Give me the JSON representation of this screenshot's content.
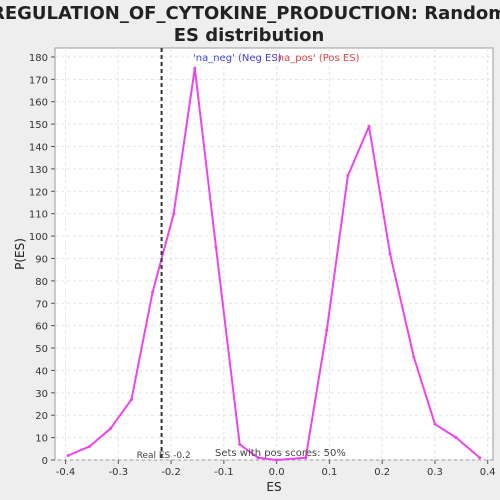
{
  "chart_data": {
    "type": "line",
    "title": "REGULATION_OF_CYTOKINE_PRODUCTION: Random\nES distribution",
    "xlabel": "ES",
    "ylabel": "P(ES)",
    "xlim": [
      -0.42,
      0.41
    ],
    "ylim": [
      0,
      184
    ],
    "x_ticks": [
      -0.4,
      -0.3,
      -0.2,
      -0.1,
      0.0,
      0.1,
      0.2,
      0.3,
      0.4
    ],
    "x_tick_labels": [
      "-0.4",
      "-0.3",
      "-0.2",
      "-0.1",
      "0.0",
      "0.1",
      "0.2",
      "0.3",
      "0.4"
    ],
    "y_ticks": [
      0,
      10,
      20,
      30,
      40,
      50,
      60,
      70,
      80,
      90,
      100,
      110,
      120,
      130,
      140,
      150,
      160,
      170,
      180
    ],
    "grid": true,
    "legend": [
      {
        "label": "'na_neg' (Neg ES)",
        "color": "#4444dd"
      },
      {
        "label": "'na_pos' (Pos ES)",
        "color": "#dd4444"
      }
    ],
    "legend_position": "top",
    "series": [
      {
        "color": "#ee44ee",
        "x": [
          -0.395,
          -0.355,
          -0.315,
          -0.275,
          -0.235,
          -0.195,
          -0.155,
          -0.115,
          -0.07,
          -0.035,
          0.0,
          0.055,
          0.095,
          0.135,
          0.175,
          0.215,
          0.26,
          0.3,
          0.34,
          0.385
        ],
        "y": [
          2,
          6,
          14,
          27,
          75,
          110,
          175,
          95,
          7,
          1,
          0,
          1,
          58,
          127,
          149,
          92,
          46,
          16,
          10,
          1
        ]
      }
    ],
    "vline": {
      "x": -0.218,
      "style": "dashed",
      "color": "#333333"
    },
    "annotations": {
      "real_es": "Real ES -0.2",
      "pos_scores": "Sets with pos scores: 50%"
    }
  }
}
